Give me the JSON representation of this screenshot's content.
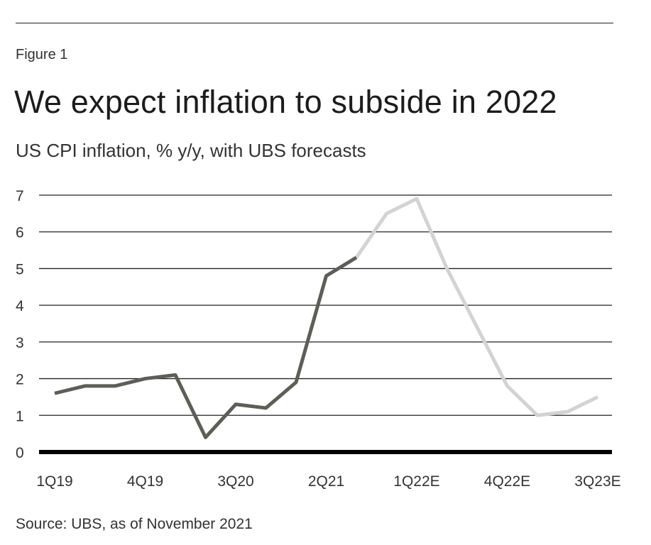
{
  "figure_label": "Figure 1",
  "title": "We expect inflation to subside in 2022",
  "subtitle": "US CPI inflation, % y/y, with UBS forecasts",
  "source": "Source: UBS, as of November 2021",
  "colors": {
    "actual": "#5e5e58",
    "forecast": "#d3d3d3",
    "grid": "#222222",
    "baseline": "#000000"
  },
  "chart_data": {
    "type": "line",
    "x": [
      "1Q19",
      "2Q19",
      "3Q19",
      "4Q19",
      "1Q20",
      "2Q20",
      "3Q20",
      "4Q20",
      "1Q21",
      "2Q21",
      "3Q21",
      "4Q21E",
      "1Q22E",
      "2Q22E",
      "3Q22E",
      "4Q22E",
      "1Q23E",
      "2Q23E",
      "3Q23E"
    ],
    "x_tick_labels": [
      "1Q19",
      "4Q19",
      "3Q20",
      "2Q21",
      "1Q22E",
      "4Q22E",
      "3Q23E"
    ],
    "series": [
      {
        "values": [
          1.6,
          1.8,
          1.8,
          2.0,
          2.1,
          0.4,
          1.3,
          1.2,
          1.9,
          4.8,
          5.3,
          null,
          null,
          null,
          null,
          null,
          null,
          null,
          null
        ]
      },
      {
        "values": [
          null,
          null,
          null,
          null,
          null,
          null,
          null,
          null,
          null,
          null,
          5.3,
          6.5,
          6.9,
          5.0,
          3.4,
          1.8,
          1.0,
          1.1,
          1.5
        ]
      }
    ],
    "ylim": [
      0,
      7
    ],
    "y_ticks": [
      0,
      1,
      2,
      3,
      4,
      5,
      6,
      7
    ],
    "grid": true
  }
}
